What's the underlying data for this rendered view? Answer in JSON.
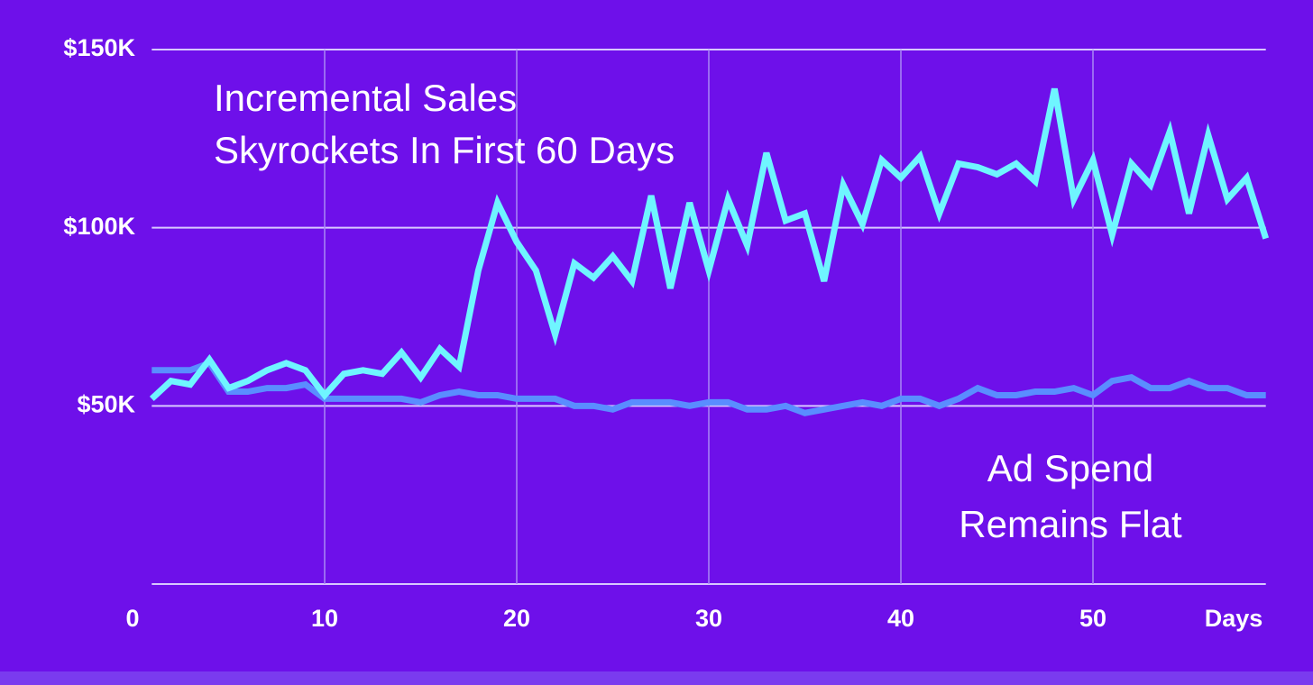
{
  "chart_data": {
    "type": "line",
    "x_label": "Days",
    "annotations": [
      "Incremental Sales",
      "Skyrockets In First 60 Days",
      "Ad Spend",
      "Remains Flat"
    ],
    "x": [
      1,
      2,
      3,
      4,
      5,
      6,
      7,
      8,
      9,
      10,
      11,
      12,
      13,
      14,
      15,
      16,
      17,
      18,
      19,
      20,
      21,
      22,
      23,
      24,
      25,
      26,
      27,
      28,
      29,
      30,
      31,
      32,
      33,
      34,
      35,
      36,
      37,
      38,
      39,
      40,
      41,
      42,
      43,
      44,
      45,
      46,
      47,
      48,
      49,
      50,
      51,
      52,
      53,
      54,
      55,
      56,
      57,
      58,
      59
    ],
    "series": [
      {
        "name": "Incremental Sales",
        "color": "#6ff5ff",
        "values": [
          52,
          57,
          56,
          63,
          55,
          57,
          60,
          62,
          60,
          53,
          59,
          60,
          59,
          65,
          58,
          66,
          61,
          88,
          107,
          96,
          88,
          70,
          90,
          86,
          92,
          85,
          109,
          83,
          107,
          88,
          108,
          95,
          121,
          102,
          104,
          85,
          112,
          101,
          119,
          114,
          120,
          104,
          118,
          117,
          115,
          118,
          113,
          139,
          108,
          119,
          98,
          118,
          112,
          127,
          104,
          126,
          108,
          114,
          97
        ]
      },
      {
        "name": "Ad Spend",
        "color": "#5a8dff",
        "values": [
          60,
          60,
          60,
          62,
          54,
          54,
          55,
          55,
          56,
          52,
          52,
          52,
          52,
          52,
          51,
          53,
          54,
          53,
          53,
          52,
          52,
          52,
          50,
          50,
          49,
          51,
          51,
          51,
          50,
          51,
          51,
          49,
          49,
          50,
          48,
          49,
          50,
          51,
          50,
          52,
          52,
          50,
          52,
          55,
          53,
          53,
          54,
          54,
          55,
          53,
          57,
          58,
          55,
          55,
          57,
          55,
          55,
          53,
          53
        ]
      }
    ],
    "xlim": [
      1,
      59
    ],
    "xticks": [
      0,
      10,
      20,
      30,
      40,
      50
    ],
    "ylim": [
      0,
      150
    ],
    "yticks": [
      {
        "value": 50,
        "label": "$50K"
      },
      {
        "value": 100,
        "label": "$100K"
      },
      {
        "value": 150,
        "label": "$150K"
      }
    ],
    "grid": true
  }
}
